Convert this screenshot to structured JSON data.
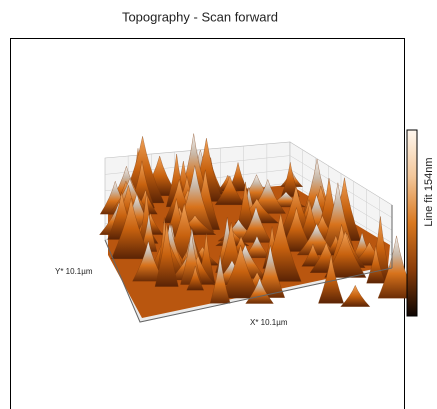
{
  "header": {
    "title": "Topography - Scan forward"
  },
  "plot": {
    "y_axis_label": "Y* 10.1µm",
    "x_axis_label": "X* 10.1µm",
    "colorbar_label": "Line fit 154nm"
  }
}
